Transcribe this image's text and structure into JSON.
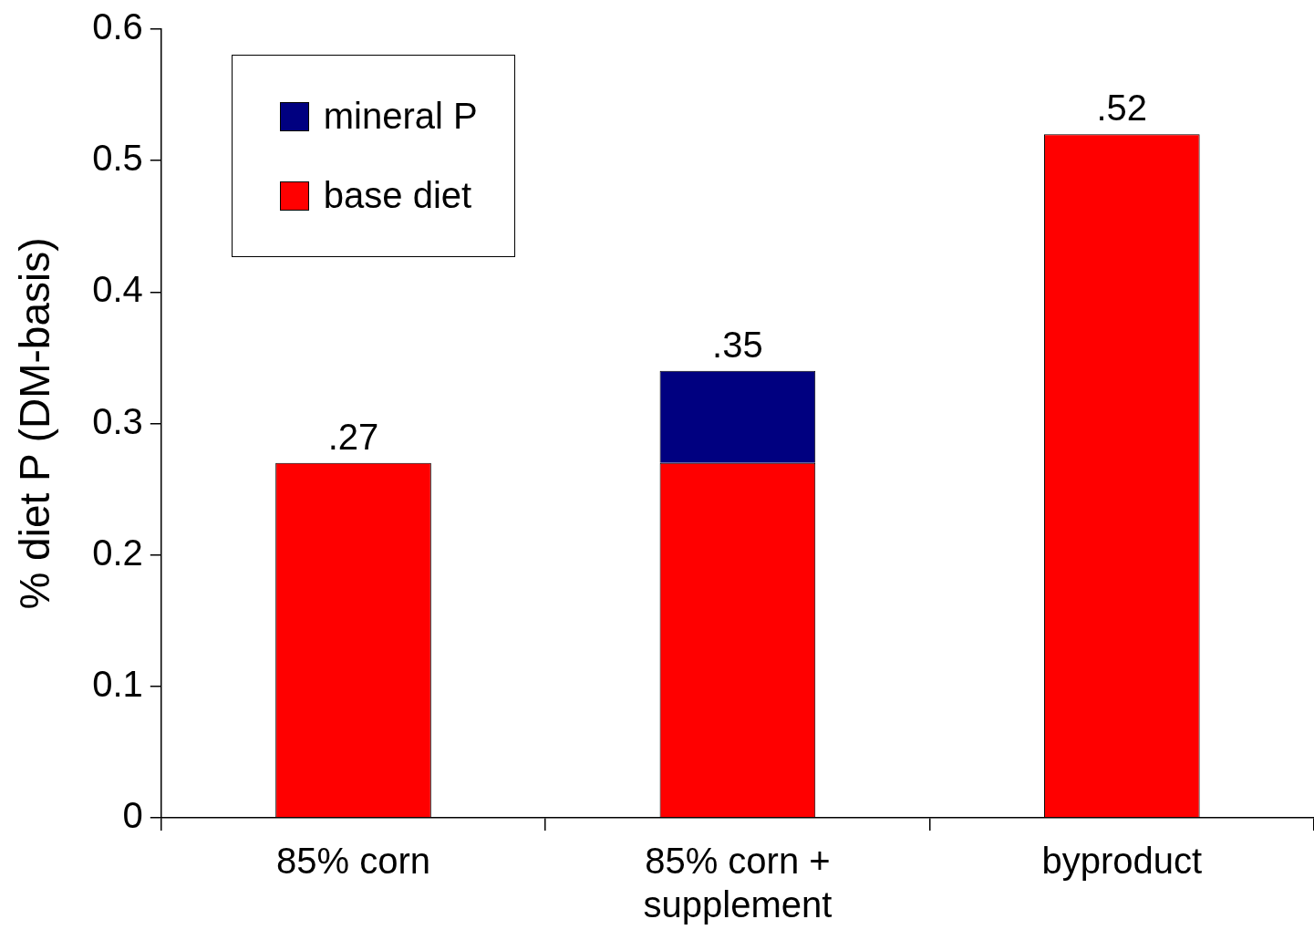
{
  "chart_data": {
    "type": "bar",
    "ylabel": "% diet P (DM-basis)",
    "categories": [
      "85% corn",
      "85% corn + supplement",
      "byproduct"
    ],
    "series": [
      {
        "name": "base diet",
        "color": "#ff0000",
        "values": [
          0.27,
          0.27,
          0.52
        ]
      },
      {
        "name": "mineral P",
        "color": "#000080",
        "values": [
          null,
          0.07,
          null
        ]
      }
    ],
    "stacked": true,
    "totals": [
      ".27",
      ".35",
      ".52"
    ],
    "ylim": [
      0,
      0.6
    ],
    "yticks": [
      0,
      0.1,
      0.2,
      0.3,
      0.4,
      0.5,
      0.6
    ],
    "grid": false,
    "legend": "top left"
  }
}
